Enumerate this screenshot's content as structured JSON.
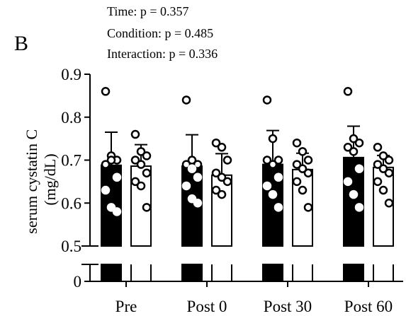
{
  "panel_label": "B",
  "stats": [
    "Time: p = 0.357",
    "Condition: p = 0.485",
    "Interaction: p = 0.336"
  ],
  "chart_data": {
    "type": "bar",
    "ylabel_line1": "serum cystatin C",
    "ylabel_line2": "(mg/dL)",
    "ylim": [
      0.5,
      0.9
    ],
    "yticks": [
      "0.9",
      "0.8",
      "0.7",
      "0.6",
      "0.5"
    ],
    "ytick_values": [
      0.9,
      0.8,
      0.7,
      0.6,
      0.5
    ],
    "lower_tick": "0",
    "axis_break": true,
    "categories": [
      "Pre",
      "Post 0",
      "Post 30",
      "Post 60"
    ],
    "series": [
      {
        "fill": "#000000",
        "values": [
          0.688,
          0.686,
          0.69,
          0.706
        ],
        "sd": [
          0.077,
          0.073,
          0.079,
          0.073
        ],
        "points": [
          [
            0.86,
            0.71,
            0.7,
            0.69,
            0.7,
            0.66,
            0.63,
            0.59,
            0.58
          ],
          [
            0.84,
            0.7,
            0.69,
            0.69,
            0.68,
            0.66,
            0.64,
            0.61,
            0.6
          ],
          [
            0.84,
            0.75,
            0.7,
            0.7,
            0.69,
            0.66,
            0.64,
            0.62,
            0.59
          ],
          [
            0.86,
            0.75,
            0.74,
            0.73,
            0.72,
            0.68,
            0.65,
            0.62,
            0.59
          ]
        ]
      },
      {
        "fill": "#ffffff",
        "values": [
          0.686,
          0.665,
          0.678,
          0.683
        ],
        "sd": [
          0.05,
          0.05,
          0.038,
          0.028
        ],
        "points": [
          [
            0.76,
            0.72,
            0.71,
            0.7,
            0.69,
            0.67,
            0.65,
            0.64,
            0.59
          ],
          [
            0.74,
            0.73,
            0.7,
            0.67,
            0.66,
            0.65,
            0.63,
            0.62
          ],
          [
            0.74,
            0.72,
            0.7,
            0.69,
            0.68,
            0.67,
            0.65,
            0.63,
            0.59
          ],
          [
            0.73,
            0.71,
            0.7,
            0.69,
            0.68,
            0.67,
            0.65,
            0.63,
            0.6
          ]
        ]
      }
    ]
  }
}
